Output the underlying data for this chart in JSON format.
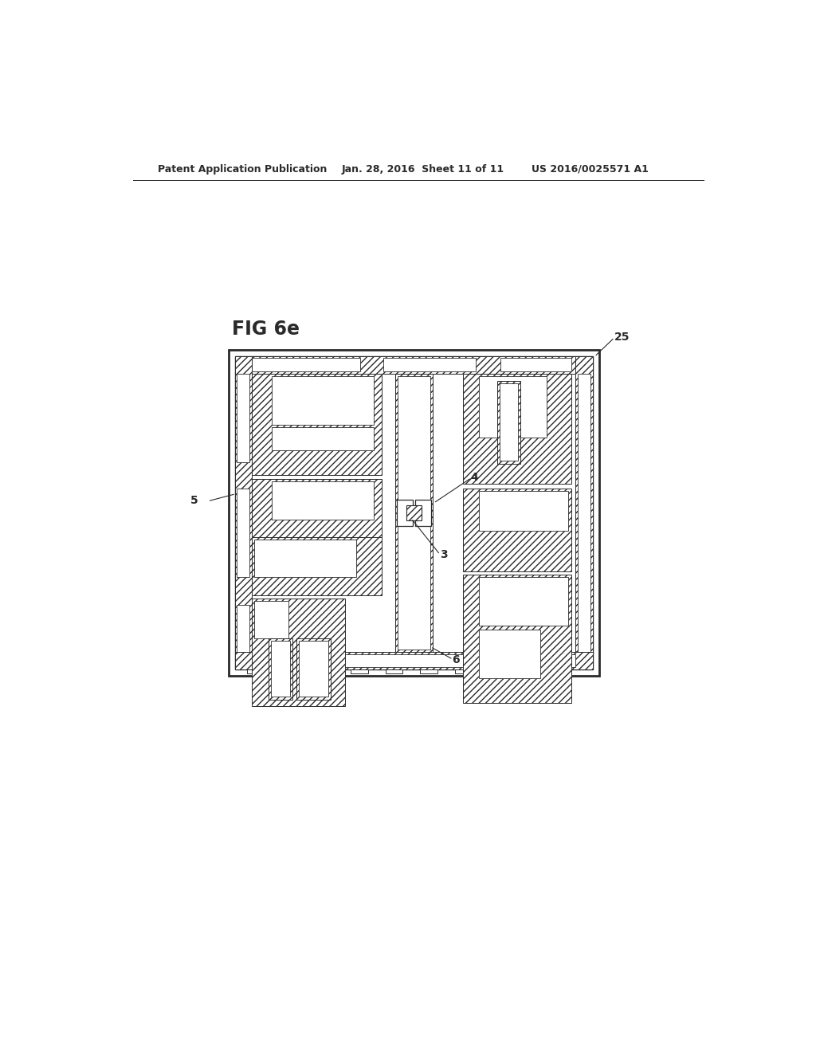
{
  "bg_color": "#ffffff",
  "lc": "#2a2a2a",
  "fig_label": "FIG 6e",
  "header_left": "Patent Application Publication",
  "header_mid": "Jan. 28, 2016  Sheet 11 of 11",
  "header_right": "US 2016/0025571 A1",
  "label_25": "25",
  "label_5": "5",
  "label_4": "4",
  "label_3": "3",
  "label_6": "6",
  "ox": 205,
  "oy": 365,
  "ow": 600,
  "oh": 530
}
